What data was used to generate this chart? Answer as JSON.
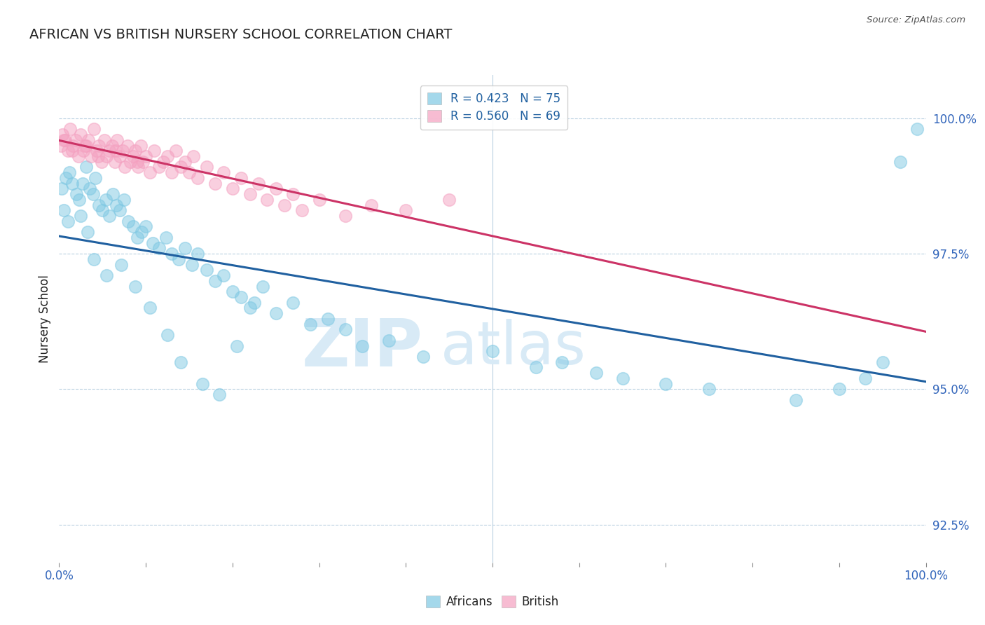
{
  "title": "AFRICAN VS BRITISH NURSERY SCHOOL CORRELATION CHART",
  "source": "Source: ZipAtlas.com",
  "ylabel": "Nursery School",
  "ytick_values": [
    100.0,
    97.5,
    95.0,
    92.5
  ],
  "xlim": [
    0.0,
    100.0
  ],
  "ylim": [
    91.8,
    100.8
  ],
  "african_R": 0.423,
  "african_N": 75,
  "british_R": 0.56,
  "british_N": 69,
  "african_color": "#7ec8e3",
  "british_color": "#f4a0c0",
  "african_line_color": "#2060a0",
  "british_line_color": "#cc3366",
  "watermark_zip": "ZIP",
  "watermark_atlas": "atlas",
  "watermark_color": "#d8eaf6",
  "african_scatter_x": [
    0.3,
    0.8,
    1.2,
    1.5,
    2.0,
    2.3,
    2.7,
    3.1,
    3.5,
    3.9,
    4.2,
    4.6,
    5.0,
    5.4,
    5.8,
    6.2,
    6.6,
    7.0,
    7.5,
    8.0,
    8.5,
    9.0,
    9.5,
    10.0,
    10.8,
    11.5,
    12.3,
    13.0,
    13.8,
    14.5,
    15.3,
    16.0,
    17.0,
    18.0,
    19.0,
    20.0,
    21.0,
    22.0,
    23.5,
    25.0,
    27.0,
    29.0,
    31.0,
    33.0,
    35.0,
    38.0,
    42.0,
    50.0,
    55.0,
    58.0,
    62.0,
    65.0,
    70.0,
    75.0,
    85.0,
    90.0,
    93.0,
    95.0,
    97.0,
    99.0,
    0.5,
    1.0,
    2.5,
    3.3,
    4.0,
    5.5,
    7.2,
    8.8,
    10.5,
    12.5,
    14.0,
    16.5,
    18.5,
    20.5,
    22.5
  ],
  "african_scatter_y": [
    98.7,
    98.9,
    99.0,
    98.8,
    98.6,
    98.5,
    98.8,
    99.1,
    98.7,
    98.6,
    98.9,
    98.4,
    98.3,
    98.5,
    98.2,
    98.6,
    98.4,
    98.3,
    98.5,
    98.1,
    98.0,
    97.8,
    97.9,
    98.0,
    97.7,
    97.6,
    97.8,
    97.5,
    97.4,
    97.6,
    97.3,
    97.5,
    97.2,
    97.0,
    97.1,
    96.8,
    96.7,
    96.5,
    96.9,
    96.4,
    96.6,
    96.2,
    96.3,
    96.1,
    95.8,
    95.9,
    95.6,
    95.7,
    95.4,
    95.5,
    95.3,
    95.2,
    95.1,
    95.0,
    94.8,
    95.0,
    95.2,
    95.5,
    99.2,
    99.8,
    98.3,
    98.1,
    98.2,
    97.9,
    97.4,
    97.1,
    97.3,
    96.9,
    96.5,
    96.0,
    95.5,
    95.1,
    94.9,
    95.8,
    96.6
  ],
  "british_scatter_x": [
    0.2,
    0.4,
    0.7,
    1.0,
    1.3,
    1.6,
    1.9,
    2.2,
    2.5,
    2.8,
    3.1,
    3.4,
    3.7,
    4.0,
    4.3,
    4.6,
    4.9,
    5.2,
    5.5,
    5.8,
    6.1,
    6.4,
    6.7,
    7.0,
    7.3,
    7.6,
    7.9,
    8.2,
    8.5,
    8.8,
    9.1,
    9.4,
    9.7,
    10.0,
    10.5,
    11.0,
    11.5,
    12.0,
    12.5,
    13.0,
    13.5,
    14.0,
    14.5,
    15.0,
    15.5,
    16.0,
    17.0,
    18.0,
    19.0,
    20.0,
    21.0,
    22.0,
    23.0,
    24.0,
    25.0,
    26.0,
    27.0,
    28.0,
    30.0,
    33.0,
    36.0,
    40.0,
    45.0,
    0.5,
    1.5,
    3.0,
    4.5,
    6.5,
    9.0
  ],
  "british_scatter_y": [
    99.5,
    99.7,
    99.6,
    99.4,
    99.8,
    99.5,
    99.6,
    99.3,
    99.7,
    99.4,
    99.5,
    99.6,
    99.3,
    99.8,
    99.4,
    99.5,
    99.2,
    99.6,
    99.3,
    99.4,
    99.5,
    99.2,
    99.6,
    99.3,
    99.4,
    99.1,
    99.5,
    99.2,
    99.3,
    99.4,
    99.1,
    99.5,
    99.2,
    99.3,
    99.0,
    99.4,
    99.1,
    99.2,
    99.3,
    99.0,
    99.4,
    99.1,
    99.2,
    99.0,
    99.3,
    98.9,
    99.1,
    98.8,
    99.0,
    98.7,
    98.9,
    98.6,
    98.8,
    98.5,
    98.7,
    98.4,
    98.6,
    98.3,
    98.5,
    98.2,
    98.4,
    98.3,
    98.5,
    99.6,
    99.4,
    99.5,
    99.3,
    99.4,
    99.2
  ]
}
